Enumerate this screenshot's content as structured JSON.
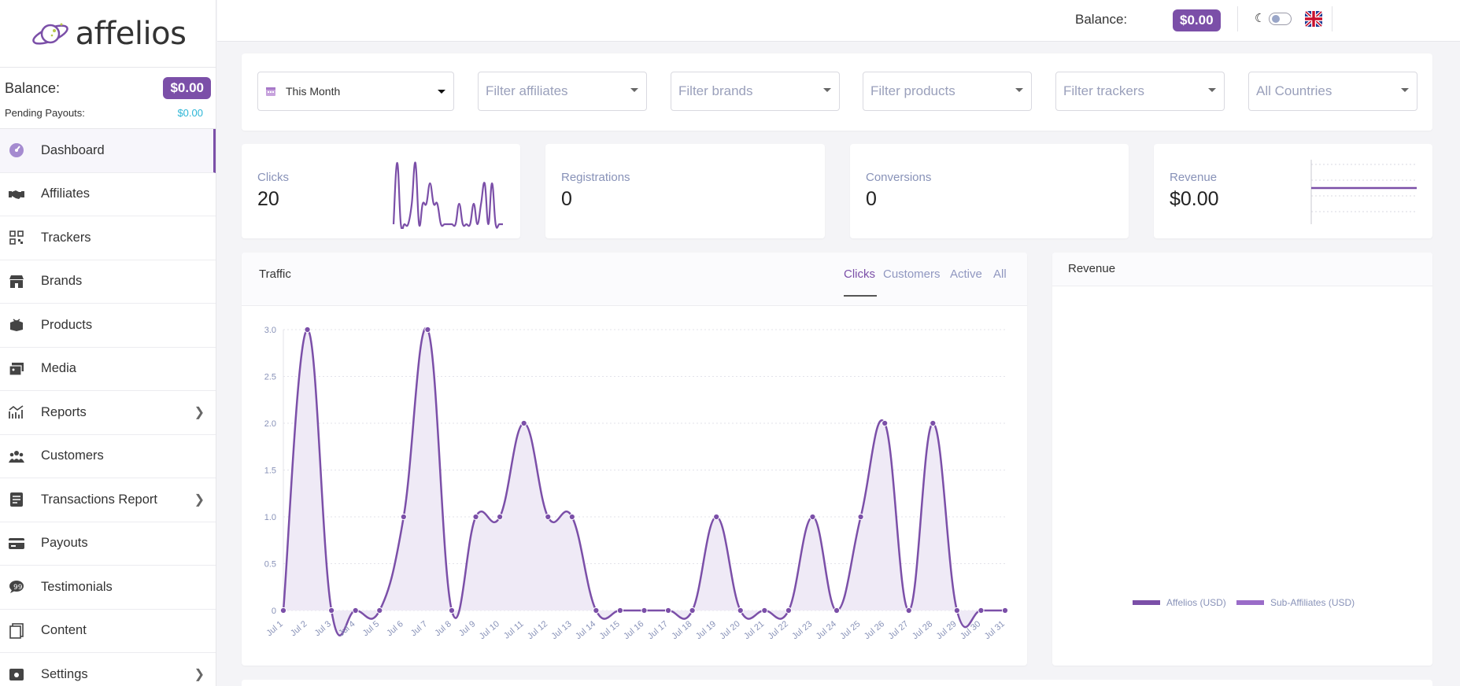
{
  "brand": {
    "name": "affelios"
  },
  "sidebar": {
    "balance_label": "Balance:",
    "balance_value": "$0.00",
    "pending_label": "Pending Payouts:",
    "pending_value": "$0.00",
    "items": [
      {
        "label": "Dashboard",
        "icon": "dashboard-icon",
        "active": true
      },
      {
        "label": "Affiliates",
        "icon": "handshake-icon"
      },
      {
        "label": "Trackers",
        "icon": "qr-code-icon"
      },
      {
        "label": "Brands",
        "icon": "store-icon"
      },
      {
        "label": "Products",
        "icon": "box-icon"
      },
      {
        "label": "Media",
        "icon": "images-icon"
      },
      {
        "label": "Reports",
        "icon": "chart-line-icon",
        "has_submenu": true
      },
      {
        "label": "Customers",
        "icon": "users-icon"
      },
      {
        "label": "Transactions Report",
        "icon": "receipt-icon",
        "has_submenu": true
      },
      {
        "label": "Payouts",
        "icon": "credit-card-icon"
      },
      {
        "label": "Testimonials",
        "icon": "quote-icon"
      },
      {
        "label": "Content",
        "icon": "documents-icon"
      },
      {
        "label": "Settings",
        "icon": "gear-icon",
        "has_submenu": true
      }
    ]
  },
  "topbar": {
    "balance_label": "Balance:",
    "balance_value": "$0.00",
    "theme_icon": "moon-icon",
    "language_icon": "uk-flag-icon"
  },
  "filters": {
    "date": "This Month",
    "affiliates": "Filter affiliates",
    "brands": "Filter brands",
    "products": "Filter products",
    "trackers": "Filter trackers",
    "countries": "All Countries"
  },
  "stats": {
    "clicks": {
      "label": "Clicks",
      "value": "20"
    },
    "registrations": {
      "label": "Registrations",
      "value": "0"
    },
    "conversions": {
      "label": "Conversions",
      "value": "0"
    },
    "revenue": {
      "label": "Revenue",
      "value": "$0.00"
    }
  },
  "traffic": {
    "title": "Traffic",
    "tabs": [
      "Clicks",
      "Customers",
      "Active",
      "All"
    ],
    "active_tab": "Clicks"
  },
  "revenue_panel": {
    "title": "Revenue",
    "legend": [
      "Affelios (USD)",
      "Sub-Affiliates (USD)"
    ]
  },
  "colors": {
    "accent": "#7b4fa8",
    "fill": "#efeaf6",
    "axis_text": "#8892b8"
  },
  "chart_data": [
    {
      "type": "area",
      "title": "Traffic",
      "categories": [
        "Jul 1",
        "Jul 2",
        "Jul 3",
        "Jul 4",
        "Jul 5",
        "Jul 6",
        "Jul 7",
        "Jul 8",
        "Jul 9",
        "Jul 10",
        "Jul 11",
        "Jul 12",
        "Jul 13",
        "Jul 14",
        "Jul 15",
        "Jul 16",
        "Jul 17",
        "Jul 18",
        "Jul 19",
        "Jul 20",
        "Jul 21",
        "Jul 22",
        "Jul 23",
        "Jul 24",
        "Jul 25",
        "Jul 26",
        "Jul 27",
        "Jul 28",
        "Jul 29",
        "Jul 30",
        "Jul 31"
      ],
      "series": [
        {
          "values": [
            0,
            3,
            0,
            0,
            0,
            1,
            3,
            0,
            1,
            1,
            2,
            1,
            1,
            0,
            0,
            0,
            0,
            0,
            1,
            0,
            0,
            0,
            1,
            0,
            1,
            2,
            0,
            2,
            0,
            0,
            0
          ]
        }
      ],
      "yticks": [
        "0",
        "0.5",
        "1.0",
        "1.5",
        "2.0",
        "2.5",
        "3.0"
      ],
      "ylim": [
        0,
        3
      ],
      "grid": true
    },
    {
      "type": "line",
      "title": "Clicks",
      "values": [
        0,
        3,
        0,
        0,
        0,
        1,
        3,
        0,
        1,
        1,
        2,
        1,
        1,
        0,
        0,
        0,
        0,
        0,
        1,
        0,
        0,
        0,
        1,
        0,
        1,
        2,
        0,
        2,
        0,
        0,
        0
      ]
    },
    {
      "type": "line",
      "title": "Revenue",
      "values": [
        0,
        0,
        0,
        0,
        0,
        0,
        0,
        0,
        0,
        0,
        0,
        0,
        0,
        0,
        0,
        0,
        0,
        0,
        0,
        0,
        0,
        0,
        0,
        0,
        0,
        0,
        0,
        0,
        0,
        0,
        0
      ]
    }
  ]
}
